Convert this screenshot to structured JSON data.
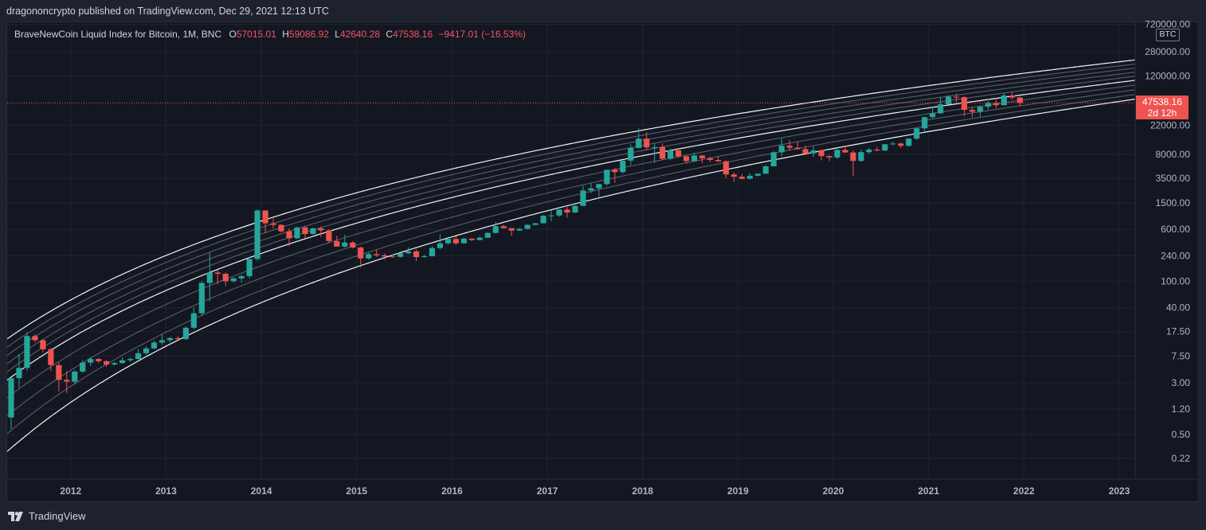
{
  "header": {
    "publisher_line": "dragononcrypto published on TradingView.com, Dec 29, 2021 12:13 UTC"
  },
  "legend": {
    "symbol_desc": "BraveNewCoin Liquid Index for Bitcoin, 1M, BNC",
    "open_label": "O",
    "open": "57015.01",
    "high_label": "H",
    "high": "59086.92",
    "low_label": "L",
    "low": "42640.28",
    "close_label": "C",
    "close": "47538.16",
    "change": "−9417.01 (−16.53%)"
  },
  "price_axis": {
    "currency": "BTC",
    "current_price": "47538.16",
    "countdown": "2d 12h"
  },
  "footer": {
    "brand": "TradingView"
  },
  "colors": {
    "up": "#26a69a",
    "down": "#ef5350",
    "band_outer": "#ffffff",
    "band_inner": "#9598a1",
    "background": "#131722"
  },
  "chart_data": {
    "type": "candlestick",
    "scale": "log",
    "interval": "1M",
    "grid": true,
    "x_range": [
      "2011-05",
      "2023-03"
    ],
    "x_tick_labels": [
      "2012",
      "2013",
      "2014",
      "2015",
      "2016",
      "2017",
      "2018",
      "2019",
      "2020",
      "2021",
      "2022",
      "2023"
    ],
    "y_tick_labels": [
      "720000.00",
      "280000.00",
      "120000.00",
      "22000.00",
      "8000.00",
      "3500.00",
      "1500.00",
      "600.00",
      "240.00",
      "100.00",
      "40.00",
      "17.50",
      "7.50",
      "3.00",
      "1.20",
      "0.50",
      "0.22"
    ],
    "y_range": [
      0.11,
      770000
    ],
    "band_anchors_years": [
      2011.36,
      2021.92
    ],
    "band_upper_top": [
      14.5,
      128000
    ],
    "band_upper_mid": [
      3.5,
      61000
    ],
    "band_lower": [
      0.3,
      29000
    ],
    "candles": [
      [
        "2011-05",
        0.9,
        1.4,
        0.6,
        3.5
      ],
      [
        "2011-06",
        3.5,
        8,
        2.5,
        5
      ],
      [
        "2011-07",
        5,
        17,
        4.5,
        15
      ],
      [
        "2011-08",
        15,
        16,
        12,
        13
      ],
      [
        "2011-09",
        13,
        13.5,
        8.5,
        9.5
      ],
      [
        "2011-10",
        9.5,
        10,
        4.5,
        5.5
      ],
      [
        "2011-11",
        5.5,
        6,
        2.2,
        3.3
      ],
      [
        "2011-12",
        3.3,
        4.5,
        2.1,
        3.1
      ],
      [
        "2012-01",
        3.1,
        4.6,
        2.8,
        4.4
      ],
      [
        "2012-02",
        4.4,
        6.5,
        4.2,
        6
      ],
      [
        "2012-03",
        6,
        7.3,
        5.3,
        6.8
      ],
      [
        "2012-04",
        6.8,
        7,
        5.9,
        6.3
      ],
      [
        "2012-05",
        6.3,
        6.5,
        5.2,
        5.6
      ],
      [
        "2012-06",
        5.6,
        6.2,
        5.4,
        5.9
      ],
      [
        "2012-07",
        5.9,
        7.2,
        5.8,
        6.5
      ],
      [
        "2012-08",
        6.5,
        7.1,
        6.2,
        6.8
      ],
      [
        "2012-09",
        6.8,
        9.5,
        6.6,
        8.3
      ],
      [
        "2012-10",
        8.3,
        10.5,
        7.8,
        9.8
      ],
      [
        "2012-11",
        9.8,
        13,
        9.5,
        12
      ],
      [
        "2012-12",
        12,
        16,
        11,
        13
      ],
      [
        "2013-01",
        13,
        14.5,
        12,
        14
      ],
      [
        "2013-02",
        14,
        15,
        13,
        13.5
      ],
      [
        "2013-03",
        13.5,
        21,
        13,
        20
      ],
      [
        "2013-04",
        20,
        40,
        19,
        33
      ],
      [
        "2013-05",
        33,
        100,
        30,
        94
      ],
      [
        "2013-06",
        94,
        266,
        50,
        135
      ],
      [
        "2013-07",
        135,
        150,
        90,
        129
      ],
      [
        "2013-08",
        129,
        135,
        85,
        100
      ],
      [
        "2013-09",
        100,
        115,
        95,
        110
      ],
      [
        "2013-10",
        110,
        125,
        95,
        119
      ],
      [
        "2013-11",
        119,
        230,
        110,
        215
      ],
      [
        "2013-12",
        215,
        1200,
        200,
        1150
      ],
      [
        "2014-01",
        1150,
        1160,
        520,
        740
      ],
      [
        "2014-02",
        740,
        870,
        620,
        700
      ],
      [
        "2014-03",
        700,
        720,
        540,
        560
      ],
      [
        "2014-04",
        560,
        620,
        340,
        440
      ],
      [
        "2014-05",
        440,
        660,
        430,
        640
      ],
      [
        "2014-06",
        640,
        680,
        440,
        510
      ],
      [
        "2014-07",
        510,
        640,
        500,
        620
      ],
      [
        "2014-08",
        620,
        670,
        460,
        580
      ],
      [
        "2014-09",
        580,
        600,
        380,
        400
      ],
      [
        "2014-10",
        400,
        480,
        330,
        330
      ],
      [
        "2014-11",
        330,
        500,
        320,
        380
      ],
      [
        "2014-12",
        380,
        400,
        310,
        320
      ],
      [
        "2015-01",
        320,
        330,
        160,
        220
      ],
      [
        "2015-02",
        220,
        270,
        210,
        255
      ],
      [
        "2015-03",
        255,
        300,
        230,
        245
      ],
      [
        "2015-04",
        245,
        260,
        210,
        235
      ],
      [
        "2015-05",
        235,
        250,
        225,
        232
      ],
      [
        "2015-06",
        232,
        265,
        225,
        262
      ],
      [
        "2015-07",
        262,
        320,
        255,
        280
      ],
      [
        "2015-08",
        280,
        300,
        200,
        230
      ],
      [
        "2015-09",
        230,
        250,
        225,
        237
      ],
      [
        "2015-10",
        237,
        335,
        235,
        315
      ],
      [
        "2015-11",
        315,
        500,
        300,
        370
      ],
      [
        "2015-12",
        370,
        470,
        355,
        430
      ],
      [
        "2016-01",
        430,
        470,
        350,
        370
      ],
      [
        "2016-02",
        370,
        450,
        365,
        435
      ],
      [
        "2016-03",
        435,
        445,
        400,
        415
      ],
      [
        "2016-04",
        415,
        470,
        410,
        450
      ],
      [
        "2016-05",
        450,
        550,
        440,
        530
      ],
      [
        "2016-06",
        530,
        780,
        520,
        670
      ],
      [
        "2016-07",
        670,
        700,
        620,
        625
      ],
      [
        "2016-08",
        625,
        620,
        480,
        575
      ],
      [
        "2016-09",
        575,
        630,
        570,
        610
      ],
      [
        "2016-10",
        610,
        720,
        600,
        700
      ],
      [
        "2016-11",
        700,
        750,
        690,
        740
      ],
      [
        "2016-12",
        740,
        980,
        740,
        960
      ],
      [
        "2017-01",
        960,
        1150,
        790,
        970
      ],
      [
        "2017-02",
        970,
        1200,
        920,
        1190
      ],
      [
        "2017-03",
        1190,
        1300,
        900,
        1075
      ],
      [
        "2017-04",
        1075,
        1380,
        1050,
        1350
      ],
      [
        "2017-05",
        1350,
        2700,
        1350,
        2300
      ],
      [
        "2017-06",
        2300,
        2980,
        2100,
        2480
      ],
      [
        "2017-07",
        2480,
        2900,
        1850,
        2870
      ],
      [
        "2017-08",
        2870,
        4700,
        2700,
        4700
      ],
      [
        "2017-09",
        4700,
        5000,
        3000,
        4340
      ],
      [
        "2017-10",
        4340,
        6450,
        4120,
        6450
      ],
      [
        "2017-11",
        6450,
        11400,
        5500,
        10000
      ],
      [
        "2017-12",
        10000,
        19700,
        9800,
        13800
      ],
      [
        "2018-01",
        13800,
        17200,
        9200,
        10200
      ],
      [
        "2018-02",
        10200,
        11800,
        6000,
        10300
      ],
      [
        "2018-03",
        10300,
        11700,
        6600,
        6900
      ],
      [
        "2018-04",
        6900,
        9800,
        6500,
        9200
      ],
      [
        "2018-05",
        9200,
        9950,
        7100,
        7500
      ],
      [
        "2018-06",
        7500,
        7800,
        5800,
        6350
      ],
      [
        "2018-07",
        6350,
        8500,
        6100,
        7700
      ],
      [
        "2018-08",
        7700,
        7800,
        5900,
        7000
      ],
      [
        "2018-09",
        7000,
        7400,
        6100,
        6600
      ],
      [
        "2018-10",
        6600,
        7500,
        6200,
        6300
      ],
      [
        "2018-11",
        6300,
        6500,
        3500,
        4000
      ],
      [
        "2018-12",
        4000,
        4300,
        3100,
        3700
      ],
      [
        "2019-01",
        3700,
        4100,
        3350,
        3450
      ],
      [
        "2019-02",
        3450,
        4200,
        3400,
        3830
      ],
      [
        "2019-03",
        3830,
        4100,
        3730,
        4100
      ],
      [
        "2019-04",
        4100,
        5600,
        4050,
        5300
      ],
      [
        "2019-05",
        5300,
        9000,
        5300,
        8600
      ],
      [
        "2019-06",
        8600,
        13900,
        7500,
        10800
      ],
      [
        "2019-07",
        10800,
        13200,
        9100,
        10100
      ],
      [
        "2019-08",
        10100,
        12300,
        9400,
        9600
      ],
      [
        "2019-09",
        9600,
        10900,
        7800,
        8300
      ],
      [
        "2019-10",
        8300,
        10500,
        7300,
        9200
      ],
      [
        "2019-11",
        9200,
        9500,
        6500,
        7550
      ],
      [
        "2019-12",
        7550,
        7700,
        6400,
        7200
      ],
      [
        "2020-01",
        7200,
        9600,
        6850,
        9350
      ],
      [
        "2020-02",
        9350,
        10500,
        8500,
        8550
      ],
      [
        "2020-03",
        8550,
        9200,
        3800,
        6400
      ],
      [
        "2020-04",
        6400,
        9460,
        6150,
        8650
      ],
      [
        "2020-05",
        8650,
        10050,
        8150,
        9450
      ],
      [
        "2020-06",
        9450,
        10400,
        8900,
        9150
      ],
      [
        "2020-07",
        9150,
        11450,
        8950,
        11350
      ],
      [
        "2020-08",
        11350,
        12450,
        11000,
        11650
      ],
      [
        "2020-09",
        11650,
        12100,
        9900,
        10750
      ],
      [
        "2020-10",
        10750,
        14000,
        10400,
        13800
      ],
      [
        "2020-11",
        13800,
        19900,
        13200,
        19700
      ],
      [
        "2020-12",
        19700,
        29300,
        17600,
        29000
      ],
      [
        "2021-01",
        29000,
        41900,
        28100,
        33100
      ],
      [
        "2021-02",
        33100,
        58300,
        32400,
        45200
      ],
      [
        "2021-03",
        45200,
        61800,
        45000,
        58800
      ],
      [
        "2021-04",
        58800,
        64900,
        47000,
        57700
      ],
      [
        "2021-05",
        57700,
        59500,
        30000,
        37300
      ],
      [
        "2021-06",
        37300,
        41300,
        28800,
        35000
      ],
      [
        "2021-07",
        35000,
        42400,
        29300,
        41500
      ],
      [
        "2021-08",
        41500,
        50500,
        37300,
        47100
      ],
      [
        "2021-09",
        47100,
        52900,
        39600,
        43800
      ],
      [
        "2021-10",
        43800,
        66900,
        43300,
        61300
      ],
      [
        "2021-11",
        61300,
        69000,
        53300,
        57015
      ],
      [
        "2021-12",
        57015.01,
        59086.92,
        42640.28,
        47538.16
      ]
    ]
  }
}
